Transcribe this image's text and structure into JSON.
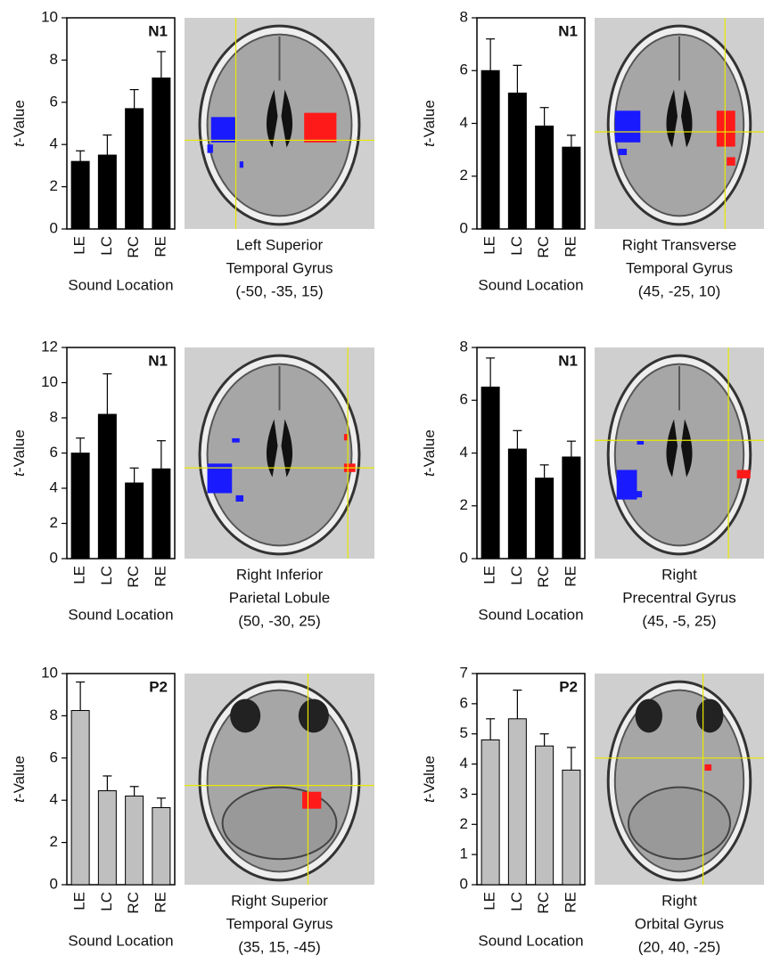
{
  "chart_data": [
    {
      "type": "bar",
      "label": "N1",
      "ylabel": "t-Value",
      "xlabel": "Sound Location",
      "categories": [
        "LE",
        "LC",
        "RC",
        "RE"
      ],
      "values": [
        3.2,
        3.5,
        5.7,
        7.15
      ],
      "errors": [
        0.5,
        0.95,
        0.9,
        1.25
      ],
      "color": "#000000",
      "ylim": [
        0,
        10
      ],
      "yticks": [
        0,
        2,
        4,
        6,
        8,
        10
      ],
      "caption": [
        "Left Superior",
        "Temporal Gyrus",
        "(-50, -35, 15)"
      ]
    },
    {
      "type": "bar",
      "label": "N1",
      "ylabel": "t-Value",
      "xlabel": "Sound Location",
      "categories": [
        "LE",
        "LC",
        "RC",
        "RE"
      ],
      "values": [
        6.0,
        5.15,
        3.9,
        3.1
      ],
      "errors": [
        1.2,
        1.05,
        0.7,
        0.45
      ],
      "color": "#000000",
      "ylim": [
        0,
        8
      ],
      "yticks": [
        0,
        2,
        4,
        6,
        8
      ],
      "caption": [
        "Right Transverse",
        "Temporal Gyrus",
        "(45, -25, 10)"
      ]
    },
    {
      "type": "bar",
      "label": "N1",
      "ylabel": "t-Value",
      "xlabel": "Sound Location",
      "categories": [
        "LE",
        "LC",
        "RC",
        "RE"
      ],
      "values": [
        6.0,
        8.2,
        4.3,
        5.1
      ],
      "errors": [
        0.85,
        2.3,
        0.85,
        1.6
      ],
      "color": "#000000",
      "ylim": [
        0,
        12
      ],
      "yticks": [
        0,
        2,
        4,
        6,
        8,
        10,
        12
      ],
      "caption": [
        "Right Inferior",
        "Parietal Lobule",
        "(50, -30, 25)"
      ]
    },
    {
      "type": "bar",
      "label": "N1",
      "ylabel": "t-Value",
      "xlabel": "Sound Location",
      "categories": [
        "LE",
        "LC",
        "RC",
        "RE"
      ],
      "values": [
        6.5,
        4.15,
        3.05,
        3.85
      ],
      "errors": [
        1.1,
        0.7,
        0.5,
        0.6
      ],
      "color": "#000000",
      "ylim": [
        0,
        8
      ],
      "yticks": [
        0,
        2,
        4,
        6,
        8
      ],
      "caption": [
        "Right",
        "Precentral Gyrus",
        "(45, -5, 25)"
      ]
    },
    {
      "type": "bar",
      "label": "P2",
      "ylabel": "t-Value",
      "xlabel": "Sound Location",
      "categories": [
        "LE",
        "LC",
        "RC",
        "RE"
      ],
      "values": [
        8.25,
        4.45,
        4.2,
        3.65
      ],
      "errors": [
        1.35,
        0.7,
        0.45,
        0.45
      ],
      "color": "#bfbfbf",
      "ylim": [
        0,
        10
      ],
      "yticks": [
        0,
        2,
        4,
        6,
        8,
        10
      ],
      "caption": [
        "Right Superior",
        "Temporal Gyrus",
        "(35, 15, -45)"
      ]
    },
    {
      "type": "bar",
      "label": "P2",
      "ylabel": "t-Value",
      "xlabel": "Sound Location",
      "categories": [
        "LE",
        "LC",
        "RC",
        "RE"
      ],
      "values": [
        4.8,
        5.5,
        4.6,
        3.8
      ],
      "errors": [
        0.7,
        0.95,
        0.4,
        0.75
      ],
      "color": "#bfbfbf",
      "ylim": [
        0,
        7
      ],
      "yticks": [
        0,
        1,
        2,
        3,
        4,
        5,
        6,
        7
      ],
      "caption": [
        "Right",
        "Orbital Gyrus",
        "(20, 40, -25)"
      ]
    }
  ]
}
